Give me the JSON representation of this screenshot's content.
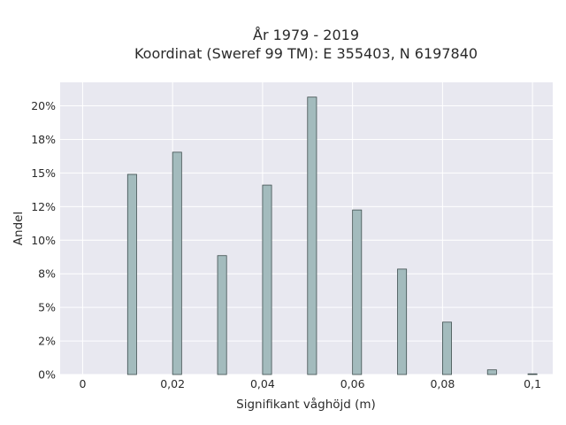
{
  "chart_data": {
    "type": "bar",
    "title_lines": [
      "År 1979 - 2019",
      "Koordinat (Sweref 99 TM): E 355403, N 6197840"
    ],
    "xlabel": "Signifikant våghöjd (m)",
    "ylabel": "Andel",
    "x_ticks": [
      {
        "value": 0,
        "label": "0"
      },
      {
        "value": 0.02,
        "label": "0,02"
      },
      {
        "value": 0.04,
        "label": "0,04"
      },
      {
        "value": 0.06,
        "label": "0,06"
      },
      {
        "value": 0.08,
        "label": "0,08"
      },
      {
        "value": 0.1,
        "label": "0,1"
      }
    ],
    "y_ticks": [
      {
        "value": 0,
        "label": "0%"
      },
      {
        "value": 0.025,
        "label": "2%"
      },
      {
        "value": 0.05,
        "label": "5%"
      },
      {
        "value": 0.075,
        "label": "8%"
      },
      {
        "value": 0.1,
        "label": "10%"
      },
      {
        "value": 0.125,
        "label": "12%"
      },
      {
        "value": 0.15,
        "label": "15%"
      },
      {
        "value": 0.175,
        "label": "18%"
      },
      {
        "value": 0.2,
        "label": "20%"
      }
    ],
    "xlim": [
      -0.005,
      0.1045
    ],
    "ylim": [
      0,
      0.2175
    ],
    "bar_width": 0.002,
    "bars": [
      {
        "x": 0.011,
        "value": 0.149
      },
      {
        "x": 0.021,
        "value": 0.1655
      },
      {
        "x": 0.031,
        "value": 0.0885
      },
      {
        "x": 0.041,
        "value": 0.141
      },
      {
        "x": 0.051,
        "value": 0.2065
      },
      {
        "x": 0.061,
        "value": 0.1225
      },
      {
        "x": 0.071,
        "value": 0.0785
      },
      {
        "x": 0.081,
        "value": 0.039
      },
      {
        "x": 0.091,
        "value": 0.0035
      },
      {
        "x": 0.1,
        "value": 0.0005
      }
    ],
    "grid": true,
    "legend": "none",
    "colors": {
      "plot_background": "#e8e8f0",
      "grid": "#ffffff",
      "bar_fill": "#a3bbbd",
      "bar_stroke": "#3f4f4f"
    }
  }
}
